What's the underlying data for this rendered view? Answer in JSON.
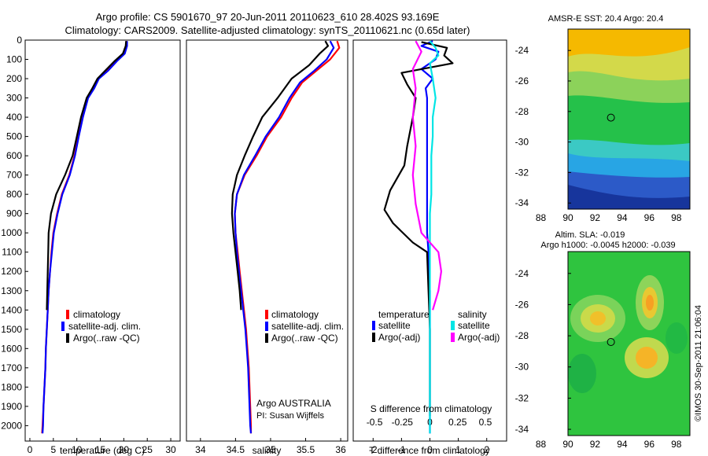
{
  "header": {
    "line1": "Argo profile: CS 5901670_97 20-Jun-2011 20110623_610 28.402S 93.169E",
    "line2": "Climatology: CARS2009. Satellite-adjusted climatology: synTS_20110621.nc (0.65d later)"
  },
  "colors": {
    "climatology": "#ff0000",
    "satellite": "#0000ff",
    "argo": "#000000",
    "satellite_s": "#00e5e5",
    "argo_s": "#ff00ff"
  },
  "chart_data": [
    {
      "type": "line",
      "name": "temperature",
      "xlabel": "temperature (deg C)",
      "ylabel": "",
      "xlim": [
        -1,
        32
      ],
      "ylim": [
        2080,
        0
      ],
      "xticks": [
        0,
        5,
        10,
        15,
        20,
        25,
        30
      ],
      "yticks": [
        0,
        100,
        200,
        300,
        400,
        500,
        600,
        700,
        800,
        900,
        1000,
        1100,
        1200,
        1300,
        1400,
        1500,
        1600,
        1700,
        1800,
        1900,
        2000
      ],
      "legend": [
        "climatology",
        "satellite-adj. clim.",
        "Argo(..raw -QC)"
      ],
      "series": [
        {
          "key": "climatology",
          "points": [
            [
              20.6,
              5
            ],
            [
              20.5,
              30
            ],
            [
              20.0,
              70
            ],
            [
              18.3,
              110
            ],
            [
              16.4,
              160
            ],
            [
              14.6,
              200
            ],
            [
              13.6,
              250
            ],
            [
              12.3,
              300
            ],
            [
              11.2,
              400
            ],
            [
              10.3,
              500
            ],
            [
              9.5,
              600
            ],
            [
              8.4,
              700
            ],
            [
              6.8,
              800
            ],
            [
              5.8,
              900
            ],
            [
              5.0,
              1000
            ],
            [
              4.6,
              1100
            ],
            [
              4.3,
              1200
            ],
            [
              4.0,
              1300
            ],
            [
              3.8,
              1400
            ],
            [
              3.6,
              1500
            ],
            [
              3.4,
              1600
            ],
            [
              3.3,
              1700
            ],
            [
              3.1,
              1800
            ],
            [
              2.9,
              1900
            ],
            [
              2.7,
              2000
            ],
            [
              2.6,
              2040
            ]
          ]
        },
        {
          "key": "satellite",
          "points": [
            [
              20.7,
              5
            ],
            [
              20.7,
              30
            ],
            [
              20.2,
              70
            ],
            [
              18.5,
              110
            ],
            [
              16.6,
              160
            ],
            [
              14.7,
              200
            ],
            [
              13.7,
              250
            ],
            [
              12.4,
              300
            ],
            [
              11.3,
              400
            ],
            [
              10.4,
              500
            ],
            [
              9.6,
              600
            ],
            [
              8.5,
              700
            ],
            [
              6.9,
              800
            ],
            [
              5.9,
              900
            ],
            [
              5.1,
              1000
            ],
            [
              4.7,
              1100
            ],
            [
              4.3,
              1200
            ],
            [
              4.0,
              1300
            ],
            [
              3.8,
              1400
            ],
            [
              3.6,
              1500
            ],
            [
              3.4,
              1600
            ],
            [
              3.3,
              1700
            ],
            [
              3.1,
              1800
            ],
            [
              2.9,
              1900
            ],
            [
              2.8,
              2000
            ],
            [
              2.7,
              2040
            ]
          ]
        },
        {
          "key": "argo",
          "points": [
            [
              20.5,
              5
            ],
            [
              20.4,
              30
            ],
            [
              19.8,
              70
            ],
            [
              18.0,
              110
            ],
            [
              16.0,
              160
            ],
            [
              14.4,
              200
            ],
            [
              13.3,
              250
            ],
            [
              12.1,
              300
            ],
            [
              10.9,
              400
            ],
            [
              10.0,
              500
            ],
            [
              9.1,
              600
            ],
            [
              7.5,
              700
            ],
            [
              5.6,
              800
            ],
            [
              4.5,
              900
            ],
            [
              4.0,
              1000
            ],
            [
              3.9,
              1100
            ],
            [
              3.8,
              1200
            ],
            [
              3.7,
              1300
            ],
            [
              3.6,
              1400
            ]
          ]
        }
      ]
    },
    {
      "type": "line",
      "name": "salinity",
      "xlabel": "salinity",
      "ylabel": "",
      "xlim": [
        33.8,
        36.1
      ],
      "ylim": [
        2080,
        0
      ],
      "xticks": [
        34,
        34.5,
        35,
        35.5,
        36
      ],
      "legend": [
        "climatology",
        "satellite-adj. clim.",
        "Argo(..raw -QC)"
      ],
      "annotation": [
        "Argo AUSTRALIA",
        "PI: Susan Wijffels"
      ],
      "series": [
        {
          "key": "climatology",
          "points": [
            [
              35.95,
              5
            ],
            [
              35.98,
              40
            ],
            [
              35.85,
              100
            ],
            [
              35.65,
              160
            ],
            [
              35.45,
              220
            ],
            [
              35.3,
              300
            ],
            [
              35.15,
              400
            ],
            [
              34.95,
              500
            ],
            [
              34.8,
              600
            ],
            [
              34.63,
              700
            ],
            [
              34.52,
              800
            ],
            [
              34.49,
              900
            ],
            [
              34.5,
              1000
            ],
            [
              34.53,
              1100
            ],
            [
              34.56,
              1200
            ],
            [
              34.59,
              1300
            ],
            [
              34.62,
              1400
            ],
            [
              34.65,
              1500
            ],
            [
              34.67,
              1600
            ],
            [
              34.69,
              1700
            ],
            [
              34.7,
              1800
            ],
            [
              34.71,
              1900
            ],
            [
              34.72,
              2000
            ],
            [
              34.72,
              2040
            ]
          ]
        },
        {
          "key": "satellite",
          "points": [
            [
              35.85,
              5
            ],
            [
              35.9,
              40
            ],
            [
              35.8,
              100
            ],
            [
              35.62,
              160
            ],
            [
              35.42,
              220
            ],
            [
              35.27,
              300
            ],
            [
              35.12,
              400
            ],
            [
              34.93,
              500
            ],
            [
              34.78,
              600
            ],
            [
              34.62,
              700
            ],
            [
              34.52,
              800
            ],
            [
              34.49,
              900
            ],
            [
              34.5,
              1000
            ],
            [
              34.52,
              1100
            ],
            [
              34.55,
              1200
            ],
            [
              34.58,
              1300
            ],
            [
              34.61,
              1400
            ],
            [
              34.64,
              1500
            ],
            [
              34.66,
              1600
            ],
            [
              34.68,
              1700
            ],
            [
              34.69,
              1800
            ],
            [
              34.7,
              1900
            ],
            [
              34.71,
              2000
            ],
            [
              34.72,
              2040
            ]
          ]
        },
        {
          "key": "argo",
          "points": [
            [
              35.78,
              5
            ],
            [
              35.82,
              30
            ],
            [
              35.7,
              70
            ],
            [
              35.55,
              130
            ],
            [
              35.3,
              200
            ],
            [
              35.1,
              300
            ],
            [
              34.88,
              400
            ],
            [
              34.75,
              500
            ],
            [
              34.63,
              600
            ],
            [
              34.52,
              700
            ],
            [
              34.46,
              800
            ],
            [
              34.45,
              900
            ],
            [
              34.47,
              1000
            ],
            [
              34.5,
              1100
            ],
            [
              34.53,
              1200
            ],
            [
              34.56,
              1300
            ],
            [
              34.58,
              1400
            ]
          ]
        }
      ]
    },
    {
      "type": "line",
      "name": "differences",
      "xlabel": "T difference from climatology",
      "xlabel2": "S difference from climatology",
      "xlim": [
        -2.7,
        2.7
      ],
      "ylim": [
        2080,
        0
      ],
      "xticks_t": [
        "-2",
        "-1",
        "0",
        "1",
        "2"
      ],
      "xticks_s": [
        "-0.5",
        "-0.25",
        "0",
        "0.25",
        "0.5"
      ],
      "legend_t_title": "temperature",
      "legend_s_title": "salinity",
      "legend_t": [
        "satellite",
        "Argo(-adj)"
      ],
      "legend_s": [
        "satellite",
        "Argo(-adj)"
      ],
      "series": [
        {
          "key": "satellite",
          "points": [
            [
              0.1,
              5
            ],
            [
              -0.3,
              30
            ],
            [
              0.3,
              60
            ],
            [
              0.2,
              100
            ],
            [
              -0.3,
              150
            ],
            [
              0.1,
              200
            ],
            [
              -0.15,
              250
            ],
            [
              -0.1,
              300
            ],
            [
              -0.1,
              400
            ],
            [
              -0.1,
              500
            ],
            [
              -0.1,
              600
            ],
            [
              -0.1,
              700
            ],
            [
              -0.1,
              800
            ],
            [
              -0.1,
              900
            ],
            [
              -0.1,
              1000
            ],
            [
              -0.05,
              1100
            ],
            [
              -0.05,
              1200
            ],
            [
              0,
              1300
            ],
            [
              0,
              1400
            ],
            [
              0,
              1500
            ],
            [
              0,
              1600
            ],
            [
              0,
              1700
            ],
            [
              0,
              1800
            ],
            [
              0,
              1900
            ],
            [
              0,
              2000
            ],
            [
              0,
              2040
            ]
          ]
        },
        {
          "key": "argo",
          "points": [
            [
              -0.3,
              10
            ],
            [
              0.6,
              40
            ],
            [
              0.5,
              80
            ],
            [
              0.8,
              120
            ],
            [
              -1.0,
              170
            ],
            [
              -0.8,
              230
            ],
            [
              -0.5,
              300
            ],
            [
              -0.6,
              400
            ],
            [
              -0.8,
              550
            ],
            [
              -0.9,
              650
            ],
            [
              -1.4,
              780
            ],
            [
              -1.6,
              880
            ],
            [
              -1.3,
              950
            ],
            [
              -0.6,
              1050
            ],
            [
              -0.1,
              1100
            ],
            [
              -0.05,
              1300
            ],
            [
              0,
              1500
            ],
            [
              0,
              1700
            ],
            [
              0,
              1900
            ],
            [
              0,
              1950
            ]
          ]
        },
        {
          "key": "satellite_s",
          "points": [
            [
              0.0,
              5
            ],
            [
              0.2,
              40
            ],
            [
              0.3,
              80
            ],
            [
              0.0,
              120
            ],
            [
              0.1,
              200
            ],
            [
              0.2,
              300
            ],
            [
              0.1,
              400
            ],
            [
              0.1,
              500
            ],
            [
              0.05,
              600
            ],
            [
              0.05,
              700
            ],
            [
              0.05,
              800
            ],
            [
              0.0,
              900
            ],
            [
              0.0,
              1000
            ],
            [
              0.0,
              1200
            ],
            [
              0.0,
              1500
            ],
            [
              0.0,
              1800
            ],
            [
              0.0,
              2040
            ]
          ]
        },
        {
          "key": "argo_s",
          "points": [
            [
              -0.5,
              5
            ],
            [
              -0.3,
              60
            ],
            [
              -0.6,
              150
            ],
            [
              -0.5,
              250
            ],
            [
              -0.6,
              400
            ],
            [
              -0.5,
              550
            ],
            [
              -0.6,
              700
            ],
            [
              -0.5,
              850
            ],
            [
              -0.3,
              1000
            ],
            [
              0.3,
              1100
            ],
            [
              0.4,
              1200
            ],
            [
              0.3,
              1300
            ],
            [
              0.1,
              1400
            ]
          ]
        }
      ]
    },
    {
      "type": "heatmap",
      "name": "sst",
      "title": "AMSR-E SST: 20.4  Argo: 20.4",
      "xticks": [
        88,
        90,
        92,
        94,
        96,
        98
      ],
      "yticks": [
        -24,
        -26,
        -28,
        -30,
        -32,
        -34
      ],
      "xlim": [
        87,
        99
      ],
      "ylim": [
        -34.4,
        -22.6
      ],
      "data_xlim": [
        90,
        99
      ],
      "marker": [
        93.17,
        -28.4
      ]
    },
    {
      "type": "heatmap",
      "name": "sla",
      "title": "Altim. SLA: -0.019",
      "subtitle": "Argo h1000: -0.0045 h2000: -0.039",
      "xticks": [
        88,
        90,
        92,
        94,
        96,
        98
      ],
      "yticks": [
        -24,
        -26,
        -28,
        -30,
        -32,
        -34
      ],
      "xlim": [
        87,
        99
      ],
      "ylim": [
        -34.4,
        -22.6
      ],
      "data_xlim": [
        90,
        99
      ],
      "marker": [
        93.17,
        -28.4
      ]
    }
  ],
  "footer": "©IMOS 30-Sep-2011 21:06:04"
}
